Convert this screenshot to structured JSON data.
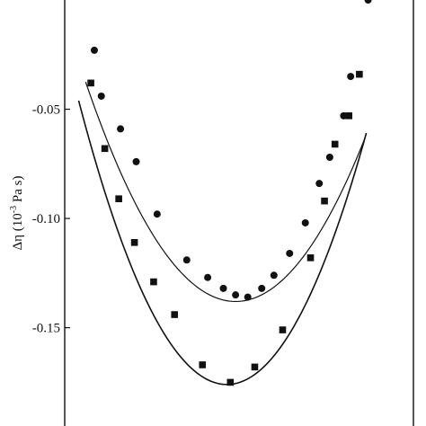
{
  "chart_data": {
    "type": "scatter",
    "ylabel": "Δη (10⁻³ Pa s)",
    "ylabel_parts": {
      "main": "Δη (10",
      "exp": "-3",
      "tail": " Pa s)"
    },
    "ylim": [
      -0.195,
      0.0
    ],
    "xlim": [
      0.0,
      1.0
    ],
    "yticks": [
      -0.05,
      -0.1,
      -0.15
    ],
    "ytick_labels": [
      "-0.05",
      "-0.10",
      "-0.15"
    ],
    "xlabel": "",
    "grid": false,
    "series": [
      {
        "marker": "circle",
        "x": [
          0.085,
          0.105,
          0.16,
          0.205,
          0.265,
          0.35,
          0.41,
          0.455,
          0.49,
          0.525,
          0.565,
          0.6,
          0.645,
          0.69,
          0.73,
          0.76,
          0.8,
          0.82,
          0.87
        ],
        "y": [
          -0.023,
          -0.044,
          -0.059,
          -0.074,
          -0.098,
          -0.119,
          -0.127,
          -0.132,
          -0.135,
          -0.136,
          -0.132,
          -0.126,
          -0.116,
          -0.102,
          -0.084,
          -0.072,
          -0.053,
          -0.035,
          -0.0
        ],
        "fit": {
          "a": 0.5435,
          "b": 0.138,
          "vertex": 0.49,
          "range": [
            0.06,
            0.86
          ]
        }
      },
      {
        "marker": "square",
        "x": [
          0.075,
          0.115,
          0.155,
          0.2,
          0.255,
          0.315,
          0.395,
          0.475,
          0.545,
          0.625,
          0.705,
          0.745,
          0.775,
          0.815,
          0.845
        ],
        "y": [
          -0.038,
          -0.068,
          -0.091,
          -0.111,
          -0.129,
          -0.144,
          -0.167,
          -0.175,
          -0.168,
          -0.151,
          -0.118,
          -0.092,
          -0.066,
          -0.053,
          -0.034
        ],
        "fit": {
          "a": 0.7195,
          "b": 0.176,
          "vertex": 0.465,
          "range": [
            0.04,
            0.865
          ]
        }
      }
    ]
  }
}
